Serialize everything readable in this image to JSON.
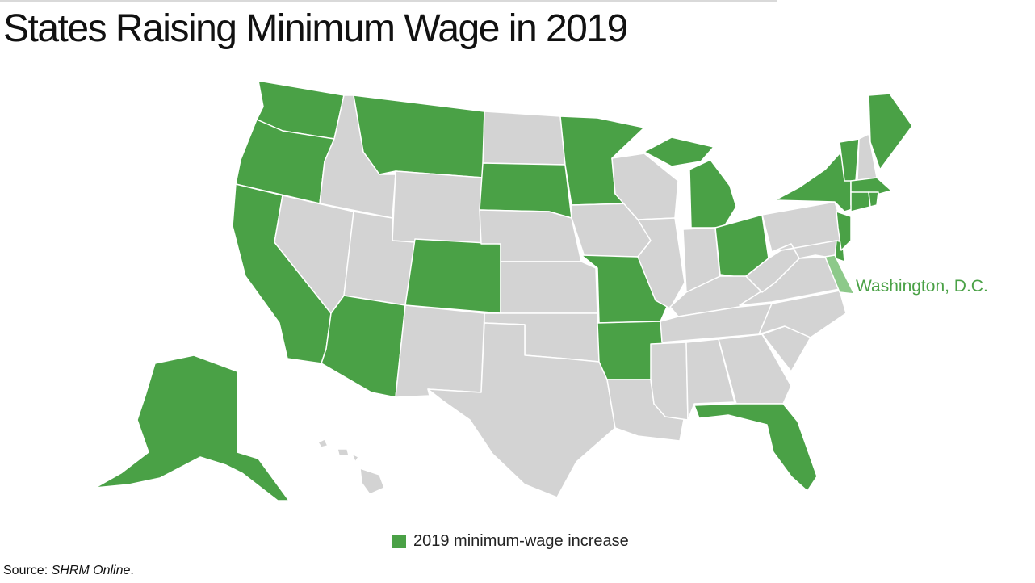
{
  "title": "States Raising Minimum Wage in 2019",
  "dc_label": "Washington, D.C.",
  "legend": {
    "label": "2019 minimum-wage increase"
  },
  "source": {
    "prefix": "Source: ",
    "name": "SHRM Online",
    "suffix": "."
  },
  "colors": {
    "increase": "#4aa146",
    "no_increase": "#d3d3d3",
    "dc": "#8dc98a",
    "border": "#ffffff"
  },
  "states_with_increase": [
    "AK",
    "AZ",
    "AR",
    "CA",
    "CO",
    "CT",
    "DE",
    "FL",
    "ME",
    "MA",
    "MI",
    "MN",
    "MO",
    "MT",
    "NJ",
    "NY",
    "OH",
    "OR",
    "RI",
    "SD",
    "VT",
    "WA",
    "DC"
  ]
}
